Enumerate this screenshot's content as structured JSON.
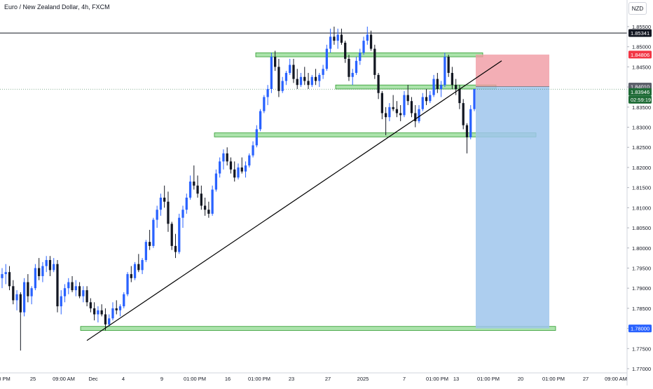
{
  "symbol": {
    "name": "Euro / New Zealand Dollar",
    "timeframe": "4h",
    "exchange": "FXCM"
  },
  "currency_button": "NZD",
  "colors": {
    "bull": "#2962ff",
    "bear": "#131722",
    "zone_fill": "#66cc66",
    "zone_stroke": "#2e9b2e",
    "stop_fill": "#f09aa3",
    "target_fill": "#9fc5ec",
    "trendline": "#000000",
    "current_price_tag": "#1e6b36",
    "top_line_tag": "#131722",
    "stop_tag": "#f23645",
    "target_tag": "#2962ff",
    "entry_tag": "#5d606b"
  },
  "chart_data": {
    "type": "candlestick",
    "ylim": [
      1.77,
      1.857
    ],
    "y_ticks": [
      "1.85500",
      "1.85000",
      "1.84500",
      "1.84000",
      "1.83500",
      "1.83000",
      "1.82500",
      "1.82000",
      "1.81500",
      "1.81000",
      "1.80500",
      "1.80000",
      "1.79500",
      "1.79000",
      "1.78500",
      "1.78000",
      "1.77500",
      "1.77000"
    ],
    "x_ticks": [
      "0 PM",
      "25",
      "09:00 AM",
      "Dec",
      "4",
      "9",
      "01:00 PM",
      "16",
      "01:00 PM",
      "23",
      "27",
      "2025",
      "7",
      "01:00 PM",
      "13",
      "01:00 PM",
      "20",
      "01:00 PM",
      "27",
      "09:00 AM"
    ],
    "price_labels": [
      {
        "text": "1.85341",
        "role": "top-line"
      },
      {
        "text": "1.84806",
        "role": "stop"
      },
      {
        "text": "1.84010",
        "role": "entry"
      },
      {
        "text": "1.83946",
        "role": "current"
      },
      {
        "text": "02:59:19",
        "role": "countdown"
      },
      {
        "text": "1.78000",
        "role": "target"
      }
    ],
    "candles": [
      [
        1.7925,
        1.795,
        1.79,
        1.7935
      ],
      [
        1.7935,
        1.796,
        1.791,
        1.794
      ],
      [
        1.794,
        1.7955,
        1.7895,
        1.7905
      ],
      [
        1.7905,
        1.792,
        1.786,
        1.787
      ],
      [
        1.787,
        1.7895,
        1.7845,
        1.7885
      ],
      [
        1.7885,
        1.789,
        1.7745,
        1.784
      ],
      [
        1.784,
        1.7925,
        1.783,
        1.7915
      ],
      [
        1.7915,
        1.7935,
        1.7865,
        1.788
      ],
      [
        1.788,
        1.7905,
        1.786,
        1.79
      ],
      [
        1.79,
        1.796,
        1.7895,
        1.795
      ],
      [
        1.795,
        1.7975,
        1.792,
        1.793
      ],
      [
        1.793,
        1.7965,
        1.7915,
        1.7955
      ],
      [
        1.7955,
        1.798,
        1.794,
        1.797
      ],
      [
        1.797,
        1.798,
        1.793,
        1.7945
      ],
      [
        1.7945,
        1.7975,
        1.794,
        1.796
      ],
      [
        1.796,
        1.797,
        1.784,
        1.7855
      ],
      [
        1.7855,
        1.7895,
        1.7835,
        1.788
      ],
      [
        1.788,
        1.791,
        1.7865,
        1.79
      ],
      [
        1.79,
        1.7925,
        1.7885,
        1.7915
      ],
      [
        1.7915,
        1.793,
        1.789,
        1.7895
      ],
      [
        1.7895,
        1.792,
        1.788,
        1.7905
      ],
      [
        1.7905,
        1.7915,
        1.7875,
        1.788
      ],
      [
        1.788,
        1.7905,
        1.7865,
        1.7895
      ],
      [
        1.7895,
        1.7905,
        1.7855,
        1.7865
      ],
      [
        1.7865,
        1.7875,
        1.784,
        1.785
      ],
      [
        1.785,
        1.7865,
        1.782,
        1.7835
      ],
      [
        1.7835,
        1.7855,
        1.7815,
        1.7845
      ],
      [
        1.7845,
        1.786,
        1.783,
        1.7835
      ],
      [
        1.7835,
        1.785,
        1.7795,
        1.781
      ],
      [
        1.781,
        1.7835,
        1.7805,
        1.7825
      ],
      [
        1.7825,
        1.7865,
        1.782,
        1.785
      ],
      [
        1.785,
        1.787,
        1.7835,
        1.7845
      ],
      [
        1.7845,
        1.786,
        1.783,
        1.7855
      ],
      [
        1.7855,
        1.789,
        1.785,
        1.7885
      ],
      [
        1.7885,
        1.794,
        1.788,
        1.7935
      ],
      [
        1.7935,
        1.7955,
        1.7915,
        1.7925
      ],
      [
        1.7925,
        1.7965,
        1.792,
        1.796
      ],
      [
        1.796,
        1.7985,
        1.794,
        1.7945
      ],
      [
        1.7945,
        1.7975,
        1.7935,
        1.797
      ],
      [
        1.797,
        1.802,
        1.7965,
        1.8015
      ],
      [
        1.8015,
        1.8045,
        1.7995,
        1.8005
      ],
      [
        1.8005,
        1.8075,
        1.8,
        1.807
      ],
      [
        1.807,
        1.8105,
        1.805,
        1.8095
      ],
      [
        1.8095,
        1.8135,
        1.808,
        1.8125
      ],
      [
        1.8125,
        1.8155,
        1.81,
        1.8115
      ],
      [
        1.8115,
        1.814,
        1.804,
        1.806
      ],
      [
        1.806,
        1.8065,
        1.7995,
        1.8005
      ],
      [
        1.8005,
        1.8035,
        1.7975,
        1.799
      ],
      [
        1.799,
        1.8085,
        1.7985,
        1.8075
      ],
      [
        1.8075,
        1.8105,
        1.805,
        1.8095
      ],
      [
        1.8095,
        1.8135,
        1.8085,
        1.8125
      ],
      [
        1.8125,
        1.818,
        1.812,
        1.8165
      ],
      [
        1.8165,
        1.8205,
        1.8145,
        1.8155
      ],
      [
        1.8155,
        1.818,
        1.8125,
        1.8135
      ],
      [
        1.8135,
        1.8155,
        1.8095,
        1.8105
      ],
      [
        1.8105,
        1.8125,
        1.808,
        1.8095
      ],
      [
        1.8095,
        1.8115,
        1.8075,
        1.8085
      ],
      [
        1.8085,
        1.8155,
        1.808,
        1.8145
      ],
      [
        1.8145,
        1.8195,
        1.814,
        1.8185
      ],
      [
        1.8185,
        1.8225,
        1.8175,
        1.8215
      ],
      [
        1.8215,
        1.8245,
        1.8195,
        1.8235
      ],
      [
        1.8235,
        1.825,
        1.8205,
        1.8215
      ],
      [
        1.8215,
        1.8225,
        1.8185,
        1.8195
      ],
      [
        1.8195,
        1.8215,
        1.8165,
        1.8175
      ],
      [
        1.8175,
        1.821,
        1.817,
        1.82
      ],
      [
        1.82,
        1.8225,
        1.8185,
        1.819
      ],
      [
        1.819,
        1.8215,
        1.8175,
        1.8205
      ],
      [
        1.8205,
        1.8235,
        1.82,
        1.823
      ],
      [
        1.823,
        1.8265,
        1.8225,
        1.8255
      ],
      [
        1.8255,
        1.8305,
        1.825,
        1.8295
      ],
      [
        1.8295,
        1.8345,
        1.829,
        1.834
      ],
      [
        1.834,
        1.838,
        1.8335,
        1.8375
      ],
      [
        1.8375,
        1.8405,
        1.8355,
        1.8395
      ],
      [
        1.8395,
        1.8485,
        1.8385,
        1.8475
      ],
      [
        1.8475,
        1.849,
        1.844,
        1.845
      ],
      [
        1.845,
        1.847,
        1.8375,
        1.839
      ],
      [
        1.839,
        1.8425,
        1.8385,
        1.8415
      ],
      [
        1.8415,
        1.844,
        1.8405,
        1.8435
      ],
      [
        1.8435,
        1.847,
        1.843,
        1.8455
      ],
      [
        1.8455,
        1.847,
        1.841,
        1.842
      ],
      [
        1.842,
        1.8445,
        1.8395,
        1.8405
      ],
      [
        1.8405,
        1.8435,
        1.84,
        1.8425
      ],
      [
        1.8425,
        1.845,
        1.8405,
        1.8415
      ],
      [
        1.8415,
        1.8435,
        1.8395,
        1.8405
      ],
      [
        1.8405,
        1.843,
        1.84,
        1.8425
      ],
      [
        1.8425,
        1.8445,
        1.8405,
        1.8415
      ],
      [
        1.8415,
        1.8435,
        1.84,
        1.843
      ],
      [
        1.843,
        1.8455,
        1.842,
        1.8445
      ],
      [
        1.8445,
        1.8505,
        1.844,
        1.8495
      ],
      [
        1.8495,
        1.8545,
        1.8485,
        1.8525
      ],
      [
        1.8525,
        1.855,
        1.8505,
        1.8515
      ],
      [
        1.8515,
        1.8545,
        1.8495,
        1.853
      ],
      [
        1.853,
        1.8545,
        1.8505,
        1.851
      ],
      [
        1.851,
        1.8515,
        1.846,
        1.847
      ],
      [
        1.847,
        1.848,
        1.8415,
        1.8425
      ],
      [
        1.8425,
        1.8445,
        1.8405,
        1.8435
      ],
      [
        1.8435,
        1.8475,
        1.843,
        1.8465
      ],
      [
        1.8465,
        1.8495,
        1.8455,
        1.8485
      ],
      [
        1.8485,
        1.8525,
        1.848,
        1.8515
      ],
      [
        1.8515,
        1.855,
        1.8505,
        1.853
      ],
      [
        1.853,
        1.854,
        1.849,
        1.8495
      ],
      [
        1.8495,
        1.8505,
        1.842,
        1.843
      ],
      [
        1.843,
        1.8435,
        1.837,
        1.8385
      ],
      [
        1.8385,
        1.839,
        1.832,
        1.8335
      ],
      [
        1.8335,
        1.835,
        1.828,
        1.8325
      ],
      [
        1.8325,
        1.836,
        1.8315,
        1.835
      ],
      [
        1.835,
        1.838,
        1.834,
        1.8345
      ],
      [
        1.8345,
        1.8365,
        1.8325,
        1.8335
      ],
      [
        1.8335,
        1.8355,
        1.8315,
        1.833
      ],
      [
        1.833,
        1.839,
        1.8325,
        1.838
      ],
      [
        1.838,
        1.8405,
        1.8355,
        1.8365
      ],
      [
        1.8365,
        1.8375,
        1.8325,
        1.8335
      ],
      [
        1.8335,
        1.8355,
        1.83,
        1.8315
      ],
      [
        1.8315,
        1.8355,
        1.831,
        1.8345
      ],
      [
        1.8345,
        1.8385,
        1.834,
        1.8375
      ],
      [
        1.8375,
        1.8395,
        1.8355,
        1.8365
      ],
      [
        1.8365,
        1.839,
        1.836,
        1.838
      ],
      [
        1.838,
        1.843,
        1.8375,
        1.842
      ],
      [
        1.842,
        1.8435,
        1.8385,
        1.8395
      ],
      [
        1.8395,
        1.8415,
        1.8375,
        1.8405
      ],
      [
        1.8405,
        1.8485,
        1.84,
        1.8475
      ],
      [
        1.8475,
        1.848,
        1.8425,
        1.8435
      ],
      [
        1.8435,
        1.845,
        1.8395,
        1.8405
      ],
      [
        1.8405,
        1.842,
        1.838,
        1.8395
      ],
      [
        1.8395,
        1.8405,
        1.8345,
        1.836
      ],
      [
        1.836,
        1.837,
        1.8295,
        1.8305
      ],
      [
        1.8305,
        1.831,
        1.8235,
        1.8275
      ],
      [
        1.8275,
        1.8355,
        1.827,
        1.8345
      ],
      [
        1.8345,
        1.8395,
        1.834,
        1.8395
      ]
    ],
    "zones": [
      {
        "from": 1.8475,
        "to": 1.8485,
        "role": "resistance"
      },
      {
        "from": 1.8395,
        "to": 1.8405,
        "role": "mid"
      },
      {
        "from": 1.8276,
        "to": 1.8286,
        "role": "support"
      },
      {
        "from": 1.7795,
        "to": 1.7805,
        "role": "target-support"
      }
    ],
    "trendline": {
      "from": 1.777,
      "to": 1.8465
    },
    "position": {
      "type": "short",
      "stop": 1.84806,
      "entry": 1.8401,
      "target": 1.78
    }
  }
}
